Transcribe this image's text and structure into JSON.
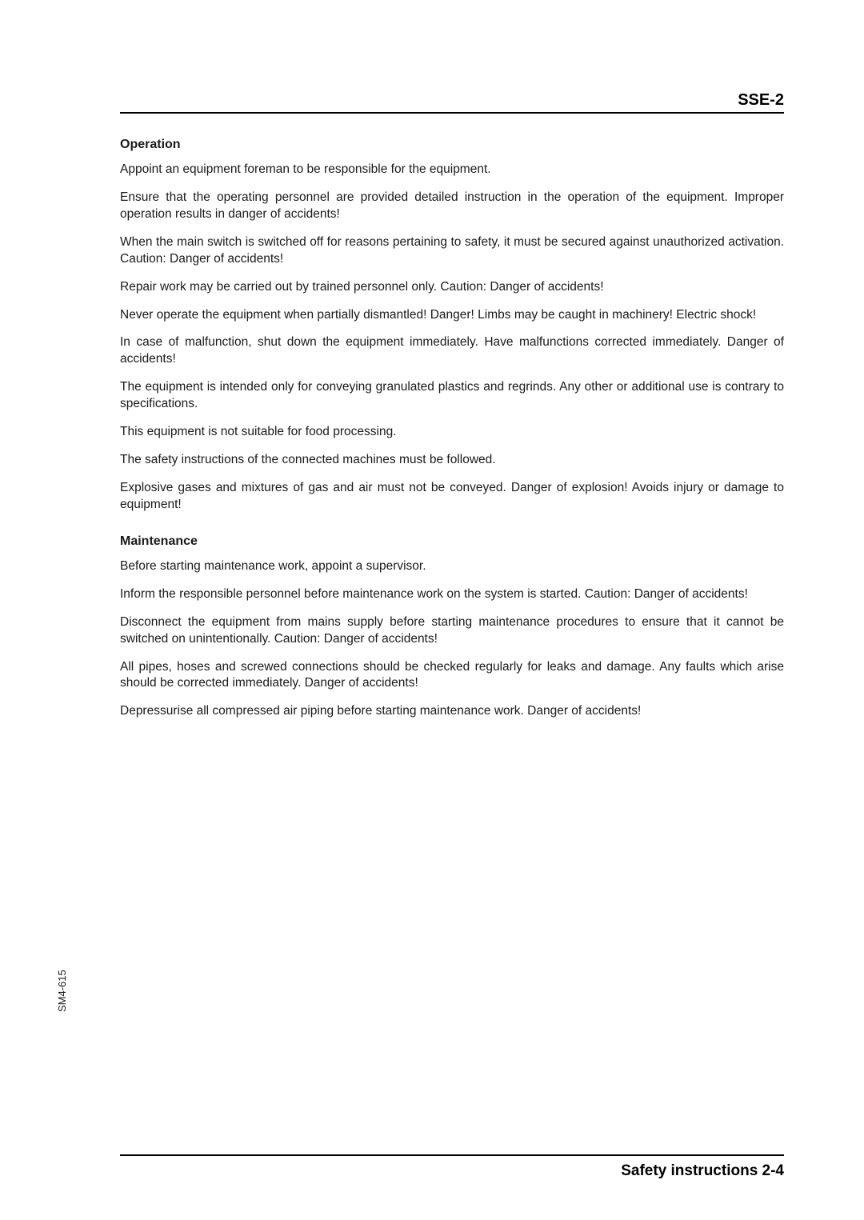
{
  "header": {
    "label": "SSE-2"
  },
  "sections": [
    {
      "title": "Operation",
      "paragraphs": [
        "Appoint an equipment foreman to be responsible for the equipment.",
        "Ensure that the operating personnel are provided detailed instruction in the operation of the equipment. Improper operation results in danger of accidents!",
        "When the main switch is switched off for reasons pertaining to safety, it must be secured against unauthorized activation. Caution: Danger of accidents!",
        "Repair work may be carried out by trained personnel only. Caution: Danger of accidents!",
        "Never operate the equipment when partially dismantled! Danger! Limbs may be caught in machinery! Electric shock!",
        "In case of malfunction, shut down the equipment immediately. Have malfunctions corrected immediately. Danger of accidents!",
        "The equipment is intended only for conveying granulated plastics and regrinds. Any other or additional use is contrary to specifications.",
        "This equipment is not suitable for food processing.",
        "The safety instructions of the connected machines must be followed.",
        "Explosive gases and mixtures of gas and air must not be conveyed. Danger of explosion! Avoids injury or damage to equipment!"
      ]
    },
    {
      "title": "Maintenance",
      "paragraphs": [
        "Before starting maintenance work, appoint a supervisor.",
        "Inform the responsible personnel before maintenance work on the system is started. Caution: Danger of accidents!",
        "Disconnect the equipment from mains supply before starting maintenance procedures to ensure that it cannot be switched on unintentionally. Caution: Danger of accidents!",
        "All pipes, hoses and screwed connections should be checked regularly for leaks and damage. Any faults which arise should be corrected immediately. Danger of accidents!",
        "Depressurise all compressed air piping before starting maintenance work. Danger of accidents!"
      ]
    }
  ],
  "footer": {
    "label": "Safety instructions 2-4"
  },
  "side": {
    "label": "SM4-615"
  },
  "colors": {
    "text": "#1a1a1a",
    "rule": "#000000",
    "background": "#ffffff"
  },
  "typography": {
    "body_fontsize": 15.5,
    "title_fontsize": 16,
    "header_fontsize": 20,
    "footer_fontsize": 19,
    "side_fontsize": 13
  }
}
